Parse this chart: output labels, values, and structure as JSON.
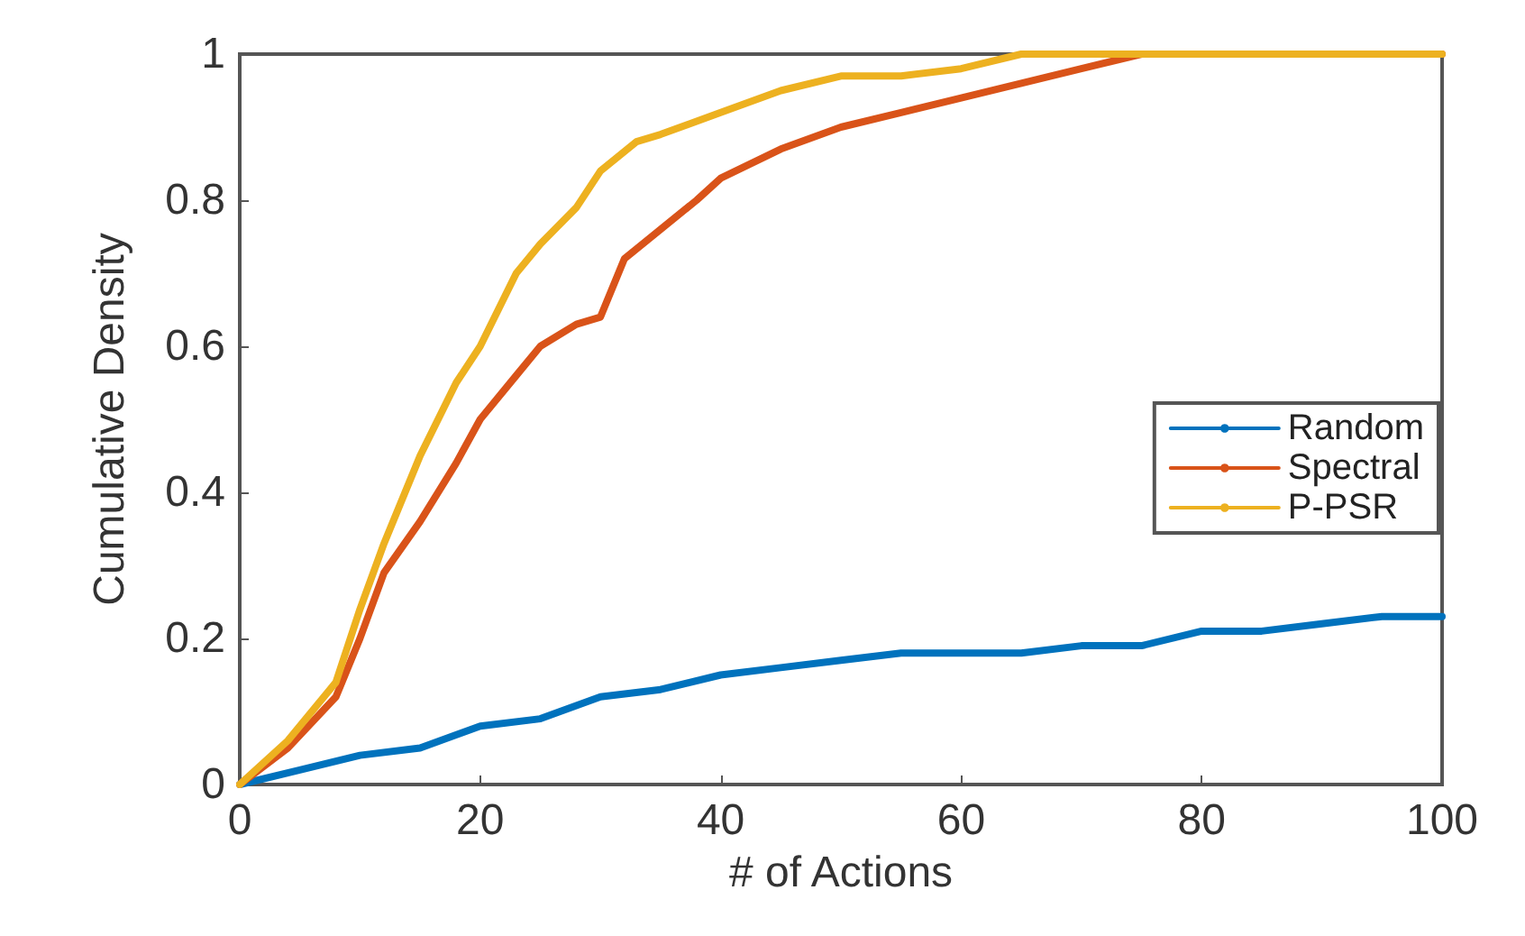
{
  "chart_data": {
    "type": "line",
    "xlabel": "# of Actions",
    "ylabel": "Cumulative Density",
    "xlim": [
      0,
      100
    ],
    "ylim": [
      0,
      1
    ],
    "xticks": [
      0,
      20,
      40,
      60,
      80,
      100
    ],
    "yticks": [
      0,
      0.2,
      0.4,
      0.6,
      0.8,
      1
    ],
    "grid": false,
    "legend": "right",
    "marker": "none",
    "line_style": "solid",
    "series": [
      {
        "name": "Random",
        "color": "#0072bd",
        "x": [
          0,
          5,
          10,
          15,
          20,
          25,
          30,
          35,
          40,
          45,
          50,
          55,
          60,
          65,
          70,
          75,
          80,
          85,
          90,
          95,
          100
        ],
        "values": [
          0,
          0.02,
          0.04,
          0.05,
          0.08,
          0.09,
          0.12,
          0.13,
          0.15,
          0.16,
          0.17,
          0.18,
          0.18,
          0.18,
          0.19,
          0.19,
          0.21,
          0.21,
          0.22,
          0.23,
          0.23
        ]
      },
      {
        "name": "Spectral",
        "color": "#d95319",
        "x": [
          0,
          4,
          8,
          10,
          12,
          15,
          18,
          20,
          23,
          25,
          28,
          30,
          32,
          35,
          38,
          40,
          45,
          50,
          55,
          60,
          65,
          70,
          75,
          100
        ],
        "values": [
          0,
          0.05,
          0.12,
          0.2,
          0.29,
          0.36,
          0.44,
          0.5,
          0.56,
          0.6,
          0.63,
          0.64,
          0.72,
          0.76,
          0.8,
          0.83,
          0.87,
          0.9,
          0.92,
          0.94,
          0.96,
          0.98,
          1,
          1
        ]
      },
      {
        "name": "P-PSR",
        "color": "#edb120",
        "x": [
          0,
          4,
          8,
          10,
          12,
          15,
          18,
          20,
          23,
          25,
          28,
          30,
          33,
          35,
          40,
          45,
          50,
          55,
          60,
          65,
          100
        ],
        "values": [
          0,
          0.06,
          0.14,
          0.24,
          0.33,
          0.45,
          0.55,
          0.6,
          0.7,
          0.74,
          0.79,
          0.84,
          0.88,
          0.89,
          0.92,
          0.95,
          0.97,
          0.97,
          0.98,
          1,
          1
        ]
      }
    ]
  }
}
